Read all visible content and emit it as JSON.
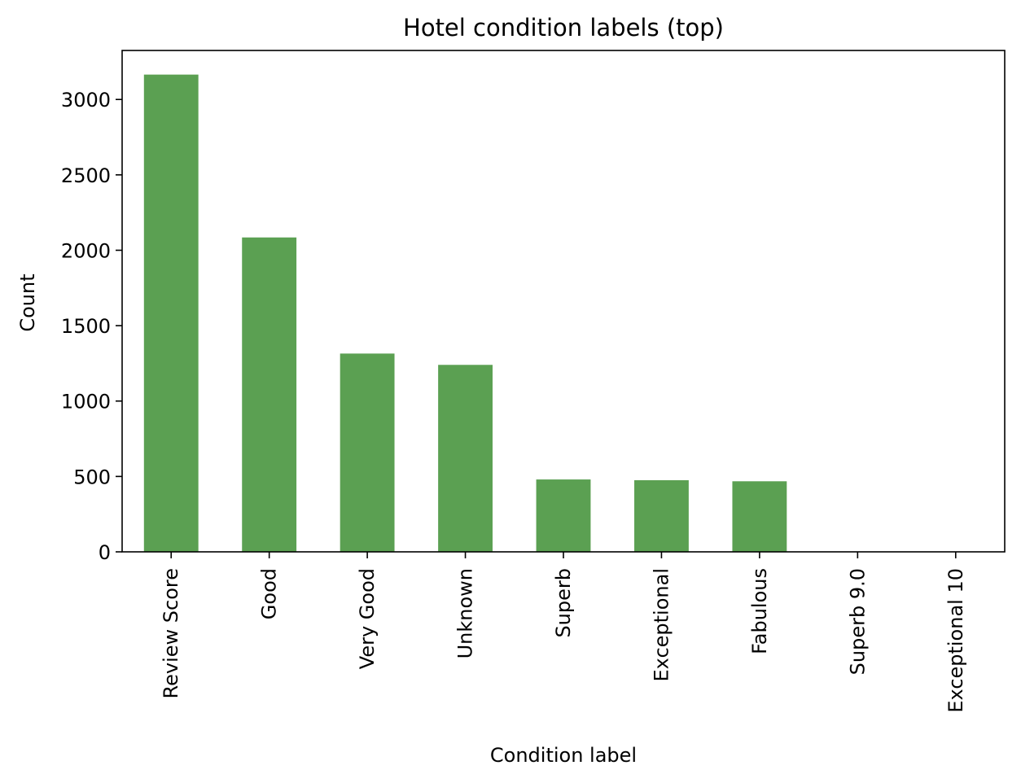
{
  "chart_data": {
    "type": "bar",
    "title": "Hotel condition labels (top)",
    "xlabel": "Condition label",
    "ylabel": "Count",
    "categories": [
      "Review Score",
      "Good",
      "Very Good",
      "Unknown",
      "Superb",
      "Exceptional",
      "Fabulous",
      "Superb 9.0",
      "Exceptional 10"
    ],
    "values": [
      3165,
      2085,
      1315,
      1240,
      480,
      475,
      468,
      1,
      1
    ],
    "ylim": [
      0,
      3325
    ],
    "yticks": [
      0,
      500,
      1000,
      1500,
      2000,
      2500,
      3000
    ],
    "bar_color": "#5ba052",
    "grid": false,
    "legend": "none"
  }
}
